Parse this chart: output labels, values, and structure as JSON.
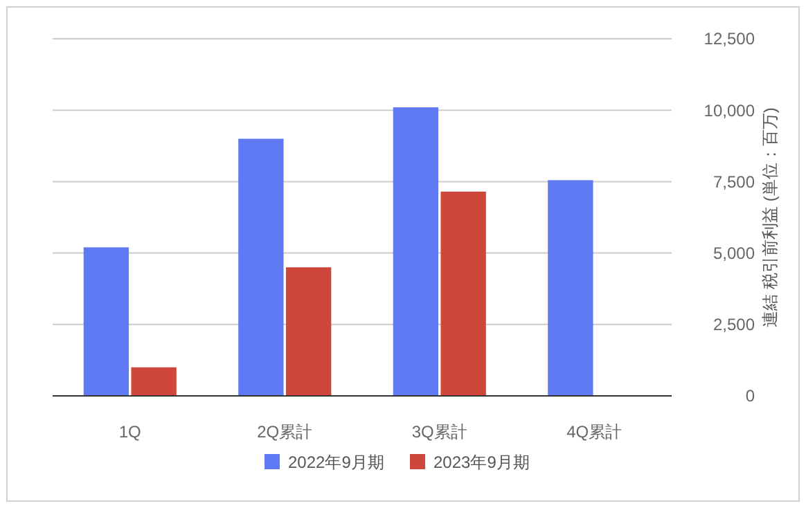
{
  "chart_data": {
    "type": "bar",
    "categories": [
      "1Q",
      "2Q累計",
      "3Q累計",
      "4Q累計"
    ],
    "series": [
      {
        "name": "2022年9月期",
        "color": "#5f7af3",
        "values": [
          5200,
          9000,
          10100,
          7550
        ]
      },
      {
        "name": "2023年9月期",
        "color": "#cf463b",
        "values": [
          1000,
          4500,
          7150,
          null
        ]
      }
    ],
    "ylabel": "連結 税引前利益 (単位：百万)",
    "ylim": [
      0,
      12500
    ],
    "yticks": [
      0,
      {
        "value": 2500,
        "label": "2,500"
      },
      {
        "value": 5000,
        "label": "5,000"
      },
      {
        "value": 7500,
        "label": "7,500"
      },
      {
        "value": 10000,
        "label": "10,000"
      },
      {
        "value": 12500,
        "label": "12,500"
      }
    ],
    "grid": "y",
    "legend": "bottom"
  }
}
